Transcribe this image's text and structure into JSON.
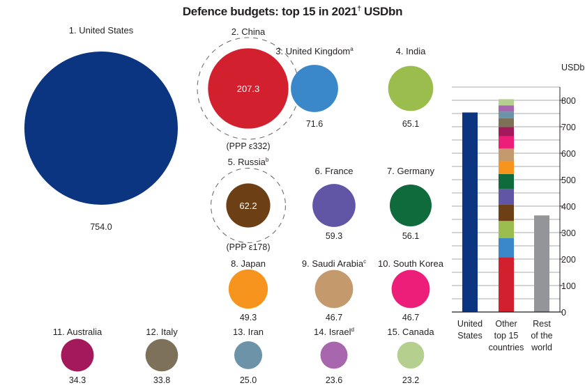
{
  "chart_data": {
    "type": "bubble+stacked-bar",
    "title": "Defence budgets: top 15 in 2021",
    "title_mark": "†",
    "title_unit": "USDbn",
    "bubbles": [
      {
        "rank": 1,
        "name": "United States",
        "note": "",
        "value": 754.0,
        "label": "754.0",
        "color": "#0b3580",
        "value_inside": false
      },
      {
        "rank": 2,
        "name": "China",
        "note": "",
        "value": 207.3,
        "label": "207.3",
        "color": "#d2202e",
        "value_inside": true,
        "ppp": 332,
        "ppp_label": "(PPP ε332)"
      },
      {
        "rank": 3,
        "name": "United Kingdom",
        "note": "a",
        "value": 71.6,
        "label": "71.6",
        "color": "#3a87c9",
        "value_inside": false
      },
      {
        "rank": 4,
        "name": "India",
        "note": "",
        "value": 65.1,
        "label": "65.1",
        "color": "#9bbd4e",
        "value_inside": false
      },
      {
        "rank": 5,
        "name": "Russia",
        "note": "b",
        "value": 62.2,
        "label": "62.2",
        "color": "#6c3f14",
        "value_inside": true,
        "ppp": 178,
        "ppp_label": "(PPP ε178)"
      },
      {
        "rank": 6,
        "name": "France",
        "note": "",
        "value": 59.3,
        "label": "59.3",
        "color": "#6155a5",
        "value_inside": false
      },
      {
        "rank": 7,
        "name": "Germany",
        "note": "",
        "value": 56.1,
        "label": "56.1",
        "color": "#0f6a3c",
        "value_inside": false
      },
      {
        "rank": 8,
        "name": "Japan",
        "note": "",
        "value": 49.3,
        "label": "49.3",
        "color": "#f7941d",
        "value_inside": false
      },
      {
        "rank": 9,
        "name": "Saudi Arabia",
        "note": "c",
        "value": 46.7,
        "label": "46.7",
        "color": "#c49a6c",
        "value_inside": false
      },
      {
        "rank": 10,
        "name": "South Korea",
        "note": "",
        "value": 46.7,
        "label": "46.7",
        "color": "#ec1e79",
        "value_inside": false
      },
      {
        "rank": 11,
        "name": "Australia",
        "note": "",
        "value": 34.3,
        "label": "34.3",
        "color": "#a3195b",
        "value_inside": false
      },
      {
        "rank": 12,
        "name": "Italy",
        "note": "",
        "value": 33.8,
        "label": "33.8",
        "color": "#7d715a",
        "value_inside": false
      },
      {
        "rank": 13,
        "name": "Iran",
        "note": "",
        "value": 25.0,
        "label": "25.0",
        "color": "#6d93a8",
        "value_inside": false
      },
      {
        "rank": 14,
        "name": "Israel",
        "note": "d",
        "value": 23.6,
        "label": "23.6",
        "color": "#a866ae",
        "value_inside": false
      },
      {
        "rank": 15,
        "name": "Canada",
        "note": "",
        "value": 23.2,
        "label": "23.2",
        "color": "#b5cf8f",
        "value_inside": false
      }
    ],
    "bar_chart": {
      "type": "stacked-bar",
      "unit_label": "USDbn",
      "ylim": [
        0,
        850
      ],
      "yticks": [
        0,
        100,
        200,
        300,
        400,
        500,
        600,
        700,
        800
      ],
      "minor_gridlines_every": 50,
      "axis_side": "right",
      "categories": [
        {
          "label_lines": [
            "United",
            "States"
          ],
          "stack": [
            {
              "name": "United States",
              "value": 754.0,
              "color": "#0b3580"
            }
          ]
        },
        {
          "label_lines": [
            "Other",
            "top 15",
            "countries"
          ],
          "stack": "bubbles[1..14]"
        },
        {
          "label_lines": [
            "Rest",
            "of the",
            "world"
          ],
          "stack": [
            {
              "name": "Rest of the world",
              "value": 365,
              "color": "#939598"
            }
          ]
        }
      ]
    }
  }
}
